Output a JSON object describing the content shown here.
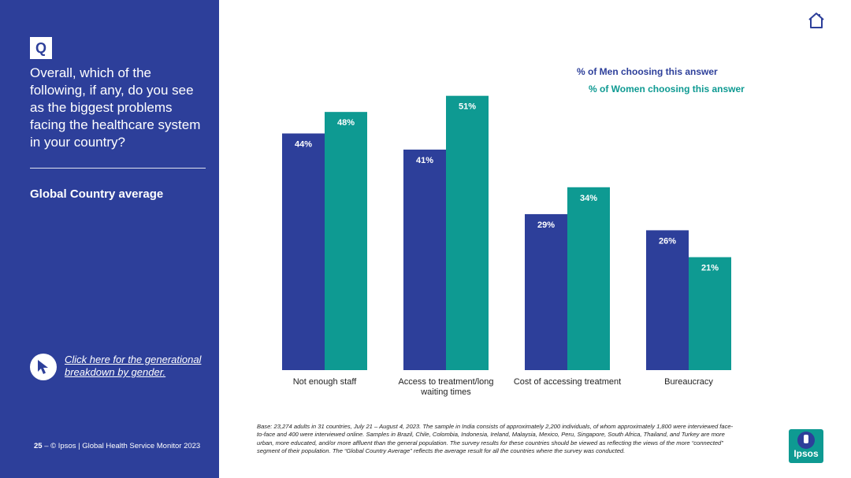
{
  "sidebar": {
    "badge": "Q",
    "question": "Overall, which of the following, if any, do you see as the biggest problems facing the healthcare system in your country?",
    "subtitle": "Global Country average",
    "link_text": "Click here for the generational breakdown by gender.",
    "footer_page": "25",
    "footer_text": " – © Ipsos | Global Health Service Monitor 2023"
  },
  "legend": {
    "men": "% of Men choosing this answer",
    "women": "% of Women choosing this answer"
  },
  "base_note": "Base: 23,274 adults in 31 countries, July 21 – August 4, 2023. The sample in India consists of approximately 2,200 individuals, of whom approximately 1,800 were interviewed face-to-face and 400 were interviewed online. Samples in Brazil, Chile, Colombia, Indonesia, Ireland, Malaysia, Mexico, Peru, Singapore, South Africa, Thailand, and Turkey are more urban, more educated, and/or more affluent than the general population. The survey results for these countries should be viewed as reflecting the views of the more “connected” segment of their population. The “Global Country Average” reflects the average result for all the countries where the survey was conducted.",
  "logo_text": "Ipsos",
  "colors": {
    "men": "#2d3f9a",
    "women": "#0e9a92"
  },
  "chart_data": {
    "type": "bar",
    "title": "Global Country average",
    "categories": [
      "Not enough staff",
      "Access to treatment/long waiting times",
      "Cost of accessing treatment",
      "Bureaucracy"
    ],
    "category_lines": [
      [
        "Not enough staff"
      ],
      [
        "Access to treatment/long",
        "waiting times"
      ],
      [
        "Cost of accessing treatment"
      ],
      [
        "Bureaucracy"
      ]
    ],
    "series": [
      {
        "name": "% of Men choosing this answer",
        "values": [
          44,
          41,
          29,
          26
        ]
      },
      {
        "name": "% of Women choosing this answer",
        "values": [
          48,
          51,
          34,
          21
        ]
      }
    ],
    "value_suffix": "%",
    "ylim": [
      0,
      56
    ],
    "grid": false,
    "legend_position": "top-right"
  }
}
